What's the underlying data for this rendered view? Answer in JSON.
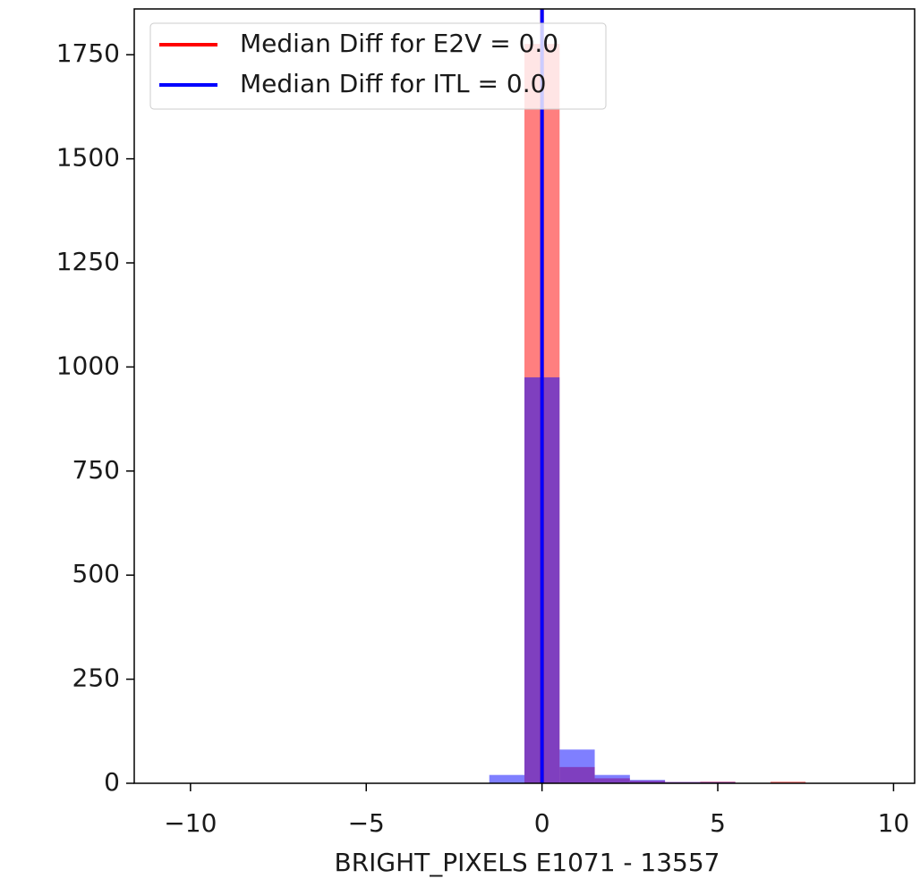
{
  "chart_data": {
    "type": "histogram",
    "xlabel": "BRIGHT_PIXELS E1071 - 13557",
    "bins": [
      -10.5,
      -9.5,
      -8.5,
      -7.5,
      -6.5,
      -5.5,
      -4.5,
      -3.5,
      -2.5,
      -1.5,
      -0.5,
      0.5,
      1.5,
      2.5,
      3.5,
      4.5,
      5.5,
      6.5,
      7.5,
      8.5,
      9.5,
      10.5
    ],
    "series": [
      {
        "name": "Median Diff for E2V = 0.0",
        "color": "#ff0000",
        "median": 0,
        "values": [
          0,
          0,
          0,
          0,
          0,
          0,
          0,
          0,
          0,
          0,
          1776,
          39,
          12,
          6,
          3,
          4,
          0,
          4,
          0,
          0,
          0
        ]
      },
      {
        "name": "Median Diff for ITL = 0.0",
        "color": "#0000ff",
        "median": 0,
        "values": [
          0,
          0,
          0,
          0,
          0,
          0,
          0,
          0,
          0,
          20,
          975,
          81,
          20,
          8,
          3,
          3,
          0,
          0,
          0,
          0,
          0
        ]
      }
    ],
    "alpha": 0.5,
    "xlim": [
      -11.6,
      10.6
    ],
    "ylim": [
      0,
      1860
    ],
    "xticks": [
      {
        "value": -10,
        "label": "−10"
      },
      {
        "value": -5,
        "label": "−5"
      },
      0,
      5,
      10
    ],
    "yticks": [
      0,
      250,
      500,
      750,
      1000,
      1250,
      1500,
      1750
    ],
    "legend": "upper left"
  }
}
